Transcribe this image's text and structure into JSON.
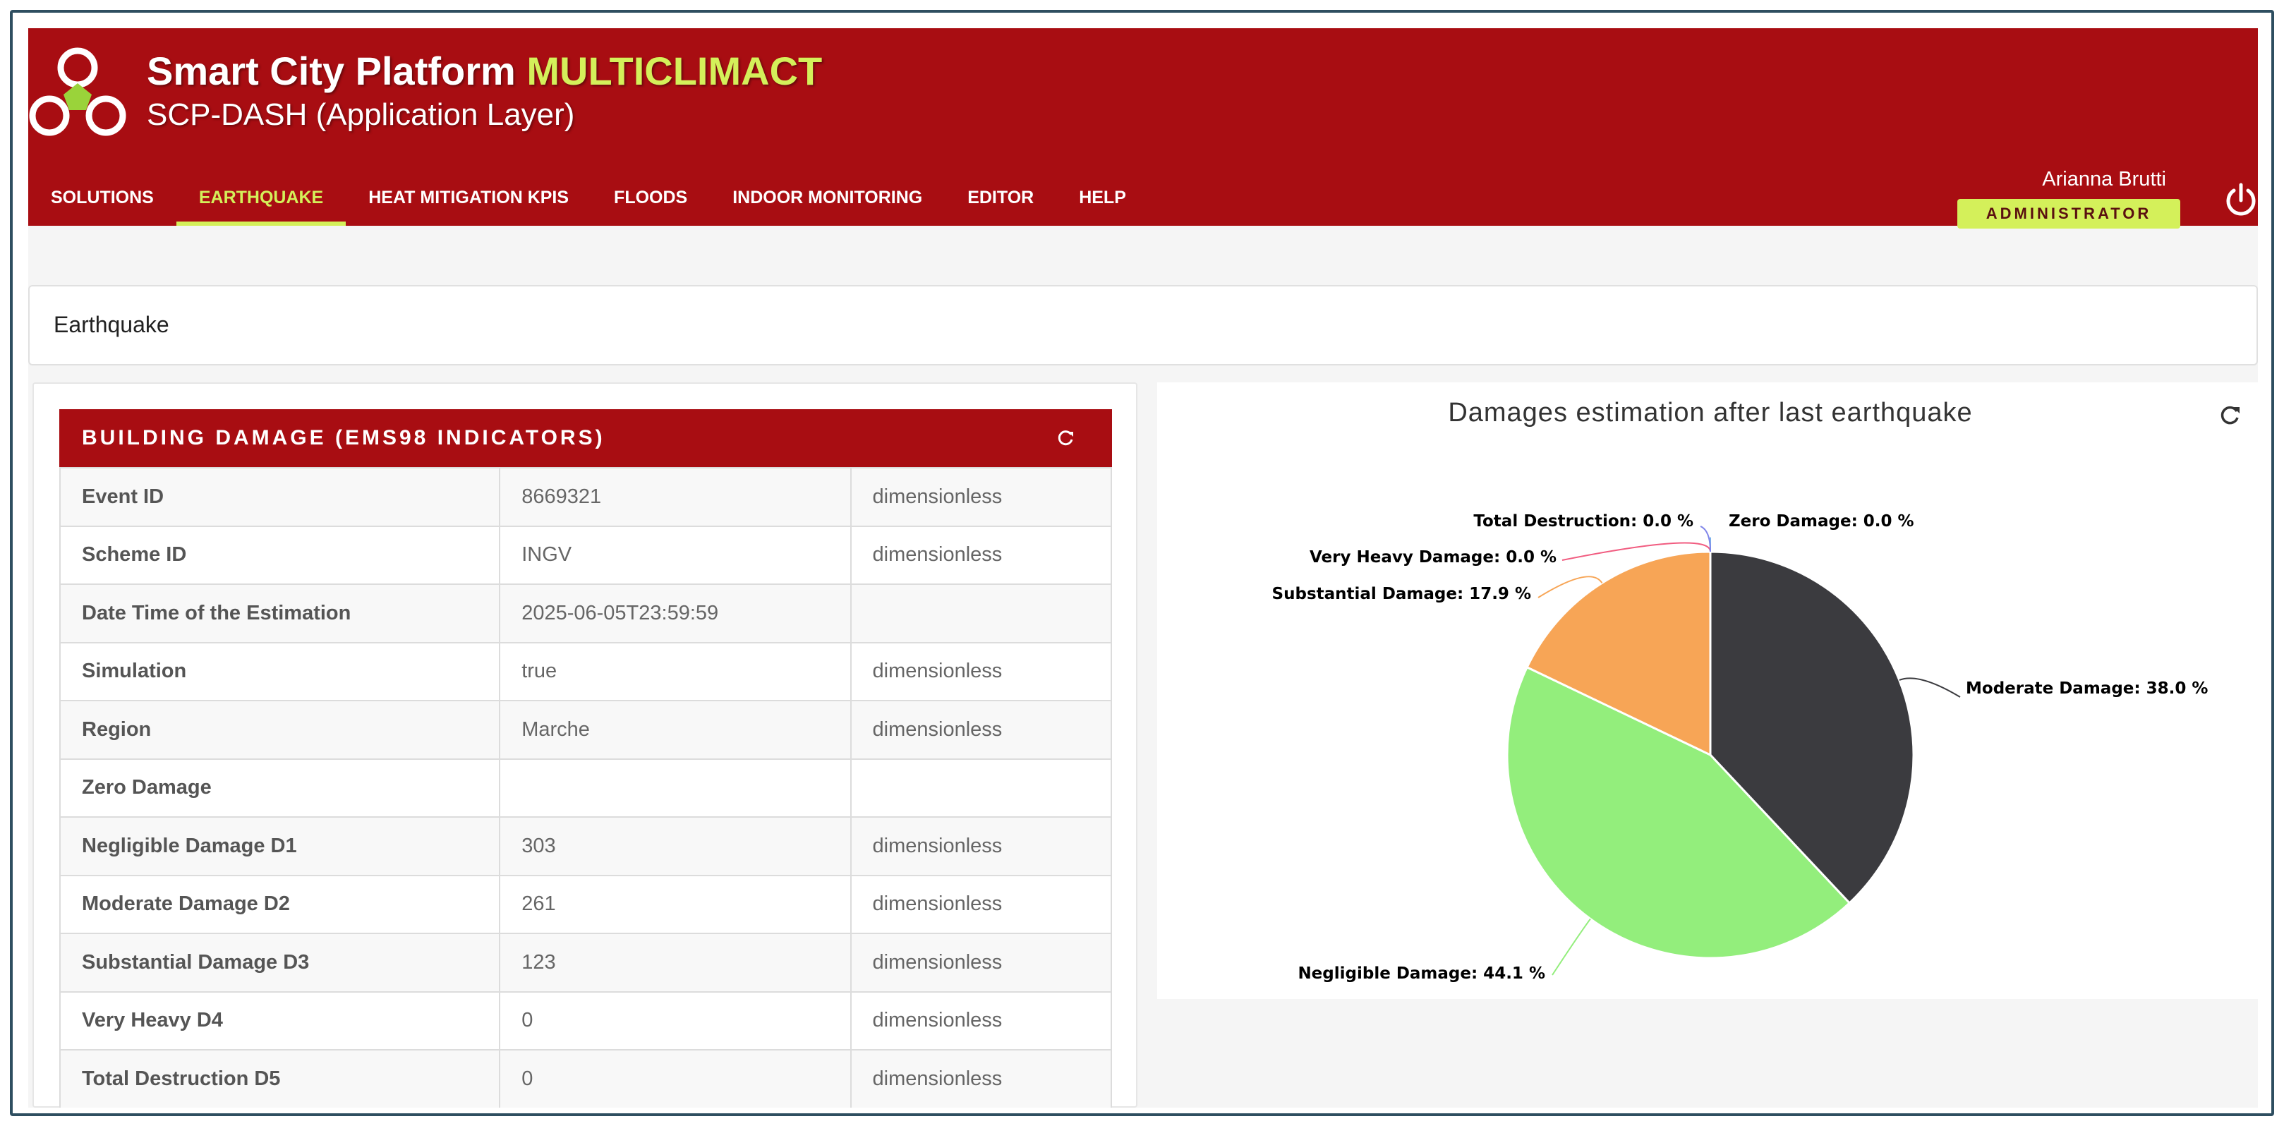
{
  "header": {
    "title_main": "Smart City Platform",
    "title_accent": "MULTICLIMACT",
    "subtitle": "SCP-DASH (Application Layer)",
    "brand_color": "#a80d12",
    "accent_color": "#d4f05a"
  },
  "nav": {
    "tabs": [
      {
        "label": "SOLUTIONS"
      },
      {
        "label": "EARTHQUAKE",
        "active": true
      },
      {
        "label": "HEAT MITIGATION KPIS"
      },
      {
        "label": "FLOODS"
      },
      {
        "label": "INDOOR MONITORING"
      },
      {
        "label": "EDITOR"
      },
      {
        "label": "HELP"
      }
    ]
  },
  "user": {
    "name": "Arianna Brutti",
    "role": "ADMINISTRATOR"
  },
  "icons": {
    "logo": "platform-logo-icon",
    "power": "power-icon",
    "refresh": "refresh-icon"
  },
  "breadcrumb": {
    "title": "Earthquake"
  },
  "damage_table": {
    "title": "BUILDING DAMAGE (EMS98 INDICATORS)",
    "rows": [
      {
        "label": "Event ID",
        "value": "8669321",
        "unit": "dimensionless"
      },
      {
        "label": "Scheme ID",
        "value": "INGV",
        "unit": "dimensionless"
      },
      {
        "label": "Date Time of the Estimation",
        "value": "2025-06-05T23:59:59",
        "unit": ""
      },
      {
        "label": "Simulation",
        "value": "true",
        "unit": "dimensionless"
      },
      {
        "label": "Region",
        "value": "Marche",
        "unit": "dimensionless"
      },
      {
        "label": "Zero Damage",
        "value": "",
        "unit": ""
      },
      {
        "label": "Negligible Damage D1",
        "value": "303",
        "unit": "dimensionless"
      },
      {
        "label": "Moderate Damage D2",
        "value": "261",
        "unit": "dimensionless"
      },
      {
        "label": "Substantial Damage D3",
        "value": "123",
        "unit": "dimensionless"
      },
      {
        "label": "Very Heavy D4",
        "value": "0",
        "unit": "dimensionless"
      },
      {
        "label": "Total Destruction D5",
        "value": "0",
        "unit": "dimensionless"
      }
    ]
  },
  "chart_data": {
    "type": "pie",
    "title": "Damages estimation after last earthquake",
    "slices": [
      {
        "name": "Zero Damage",
        "value": 0.0,
        "label": "Zero Damage: 0.0 %",
        "color": "#7cb5ec"
      },
      {
        "name": "Moderate Damage",
        "value": 38.0,
        "label": "Moderate Damage: 38.0 %",
        "color": "#3b3b3f"
      },
      {
        "name": "Negligible Damage",
        "value": 44.1,
        "label": "Negligible Damage: 44.1 %",
        "color": "#93ee7c"
      },
      {
        "name": "Substantial Damage",
        "value": 17.9,
        "label": "Substantial Damage: 17.9 %",
        "color": "#f7a556"
      },
      {
        "name": "Very Heavy Damage",
        "value": 0.0,
        "label": "Very Heavy Damage: 0.0 %",
        "color": "#f15c80"
      },
      {
        "name": "Total Destruction",
        "value": 0.0,
        "label": "Total Destruction: 0.0 %",
        "color": "#8085e9"
      }
    ],
    "legend": "none"
  }
}
